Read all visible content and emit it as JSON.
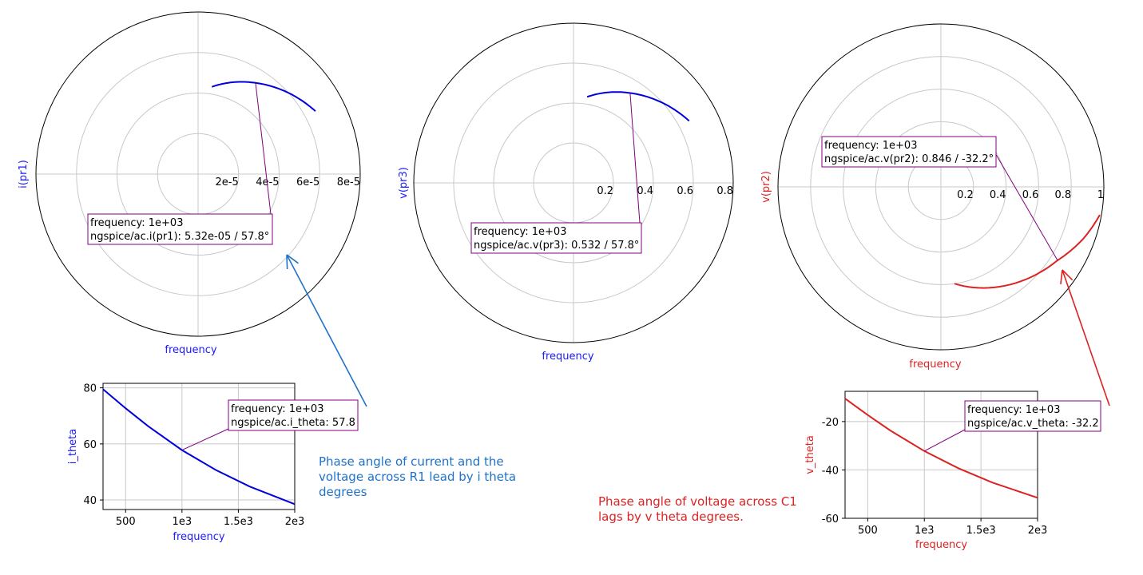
{
  "colors": {
    "blue_curve": "#0000dd",
    "blue_label": "#1a1aff",
    "red": "#dd2222",
    "note_blue": "#1f72c9",
    "marker": "#800080"
  },
  "chart_data": [
    {
      "type": "polar",
      "id": "polar-i-pr1",
      "ylabel": "i(pr1)",
      "xlabel": "frequency",
      "label_color": "#1a1aff",
      "curve_color": "#0000dd",
      "r_ticks": [
        "2e-5",
        "4e-5",
        "6e-5",
        "8e-5"
      ],
      "r_max": 8e-05,
      "series": [
        {
          "r": [
            4.36e-05,
            5.32e-05,
            6.08e-05,
            6.57e-05
          ],
          "theta_deg": [
            81.0,
            57.8,
            40.0,
            28.2
          ]
        }
      ],
      "marker": {
        "text": [
          "frequency: 1e+03",
          "ngspice/ac.i(pr1): 5.32e-05 / 57.8°"
        ],
        "r": 5.32e-05,
        "theta_deg": 57.8
      }
    },
    {
      "type": "polar",
      "id": "polar-v-pr3",
      "ylabel": "v(pr3)",
      "xlabel": "frequency",
      "label_color": "#1a1aff",
      "curve_color": "#0000dd",
      "r_ticks": [
        "0.2",
        "0.4",
        "0.6",
        "0.8"
      ],
      "r_max": 0.8,
      "series": [
        {
          "r": [
            0.436,
            0.532,
            0.608,
            0.657
          ],
          "theta_deg": [
            81.0,
            57.8,
            40.0,
            28.2
          ]
        }
      ],
      "marker": {
        "text": [
          "frequency: 1e+03",
          "ngspice/ac.v(pr3): 0.532 / 57.8°"
        ],
        "r": 0.532,
        "theta_deg": 57.8
      }
    },
    {
      "type": "polar",
      "id": "polar-v-pr2",
      "ylabel": "v(pr2)",
      "xlabel": "frequency",
      "label_color": "#dd2222",
      "curve_color": "#dd2222",
      "r_ticks": [
        "0.2",
        "0.4",
        "0.6",
        "0.8",
        "1"
      ],
      "r_max": 1.0,
      "series": [
        {
          "r": [
            0.6,
            0.846,
            0.93,
            0.99
          ],
          "theta_deg": [
            -82.0,
            -32.2,
            -20.0,
            -10.0
          ]
        }
      ],
      "marker": {
        "text": [
          "frequency: 1e+03",
          "ngspice/ac.v(pr2): 0.846 / -32.2°"
        ],
        "r": 0.846,
        "theta_deg": -32.2
      }
    },
    {
      "type": "line",
      "id": "line-i-theta",
      "ylabel": "i_theta",
      "xlabel": "frequency",
      "label_color": "#1a1aff",
      "curve_color": "#0000dd",
      "xlim": [
        300,
        2000
      ],
      "ylim": [
        36.6,
        81.6
      ],
      "x_ticks": [
        500,
        1000,
        1500,
        2000
      ],
      "x_tick_labels": [
        "500",
        "1e3",
        "1.5e3",
        "2e3"
      ],
      "y_ticks": [
        40,
        60,
        80
      ],
      "y_tick_labels": [
        "40",
        "60",
        "80"
      ],
      "series": [
        {
          "x": [
            300,
            500,
            700,
            1000,
            1300,
            1600,
            2000
          ],
          "y": [
            79.5,
            72.7,
            66.3,
            57.8,
            50.7,
            44.8,
            38.5
          ]
        }
      ],
      "marker": {
        "text": [
          "frequency: 1e+03",
          "ngspice/ac.i_theta: 57.8"
        ],
        "x": 1000,
        "y": 57.8
      }
    },
    {
      "type": "line",
      "id": "line-v-theta",
      "ylabel": "v_theta",
      "xlabel": "frequency",
      "label_color": "#dd2222",
      "curve_color": "#dd2222",
      "xlim": [
        300,
        2000
      ],
      "ylim": [
        -60,
        -7.5
      ],
      "x_ticks": [
        500,
        1000,
        1500,
        2000
      ],
      "x_tick_labels": [
        "500",
        "1e3",
        "1.5e3",
        "2e3"
      ],
      "y_ticks": [
        -60,
        -40,
        -20
      ],
      "y_tick_labels": [
        "-60",
        "-40",
        "-20"
      ],
      "series": [
        {
          "x": [
            300,
            500,
            700,
            1000,
            1300,
            1600,
            2000
          ],
          "y": [
            -10.5,
            -17.3,
            -23.7,
            -32.2,
            -39.3,
            -45.2,
            -51.5
          ]
        }
      ],
      "marker": {
        "text": [
          "frequency: 1e+03",
          "ngspice/ac.v_theta: -32.2"
        ],
        "x": 1000,
        "y": -32.2
      }
    }
  ],
  "notes": [
    {
      "lines": [
        "Phase angle of current and the",
        "voltage across R1 lead by i theta",
        "degrees"
      ]
    },
    {
      "lines": [
        "Phase angle of voltage across C1",
        "lags by v theta degrees."
      ]
    }
  ]
}
